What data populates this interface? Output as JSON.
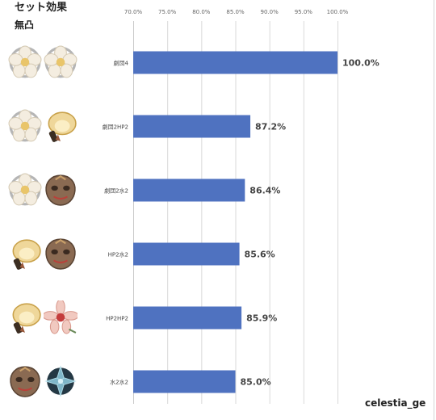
{
  "title": "セット効果",
  "subtitle": "無凸",
  "credit": "celestia_ge",
  "colors": {
    "bar": "#4f72c0",
    "grid": "#d9d9d9",
    "axis": "#c8c8c8"
  },
  "chart_data": {
    "type": "bar",
    "orientation": "horizontal",
    "categories": [
      "劇団4",
      "劇団2HP2",
      "劇団2水2",
      "HP2水2",
      "HP2HP2",
      "水2水2"
    ],
    "values": [
      100.0,
      87.2,
      86.4,
      85.6,
      85.9,
      85.0
    ],
    "data_labels": [
      "100.0%",
      "87.2%",
      "86.4%",
      "85.6%",
      "85.9%",
      "85.0%"
    ],
    "xlim": [
      70,
      100
    ],
    "xticks": [
      70,
      75,
      80,
      85,
      90,
      95,
      100
    ],
    "xtick_labels": [
      "70.0%",
      "75.0%",
      "80.0%",
      "85.0%",
      "90.0%",
      "95.0%",
      "100.0%"
    ],
    "axis_position": "top",
    "grid": true,
    "legend": "none",
    "title": "",
    "xlabel": "",
    "ylabel": ""
  },
  "icon_rows": [
    [
      "flower-artifact-icon",
      "flower-artifact-icon"
    ],
    [
      "flower-artifact-icon",
      "gold-hat-artifact-icon"
    ],
    [
      "flower-artifact-icon",
      "mask-artifact-icon"
    ],
    [
      "gold-hat-artifact-icon",
      "mask-artifact-icon"
    ],
    [
      "gold-hat-artifact-icon",
      "pink-flower-artifact-icon"
    ],
    [
      "mask-artifact-icon",
      "dark-crystal-artifact-icon"
    ]
  ]
}
